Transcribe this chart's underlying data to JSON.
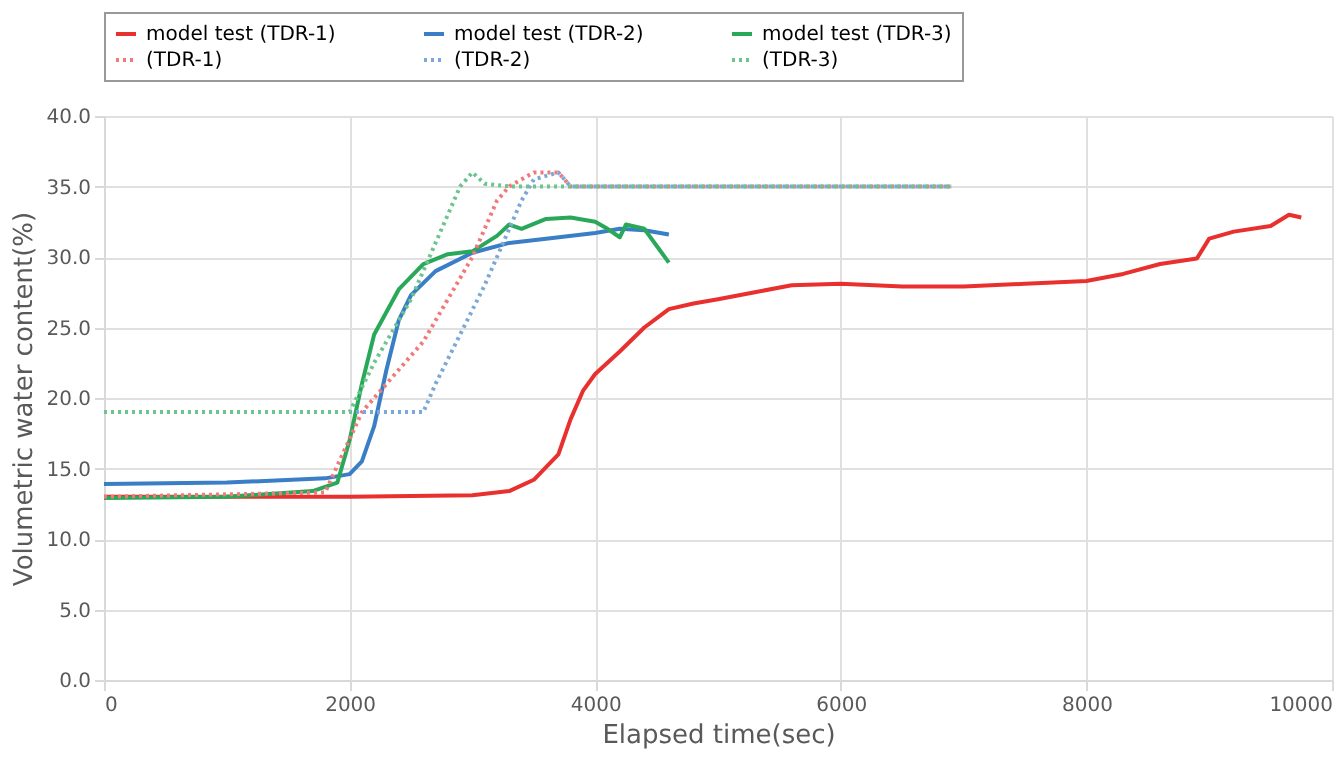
{
  "chart_data": {
    "type": "line",
    "xlabel": "Elapsed time(sec)",
    "ylabel": "Volumetric water content(%)",
    "xlim": [
      0,
      10000
    ],
    "xticks": [
      0,
      2000,
      4000,
      6000,
      8000,
      10000
    ],
    "ylim": [
      0,
      40
    ],
    "yticks": [
      {
        "value": 0,
        "label": "0.0"
      },
      {
        "value": 5,
        "label": "5.0"
      },
      {
        "value": 10,
        "label": "10.0"
      },
      {
        "value": 15,
        "label": "15.0"
      },
      {
        "value": 20,
        "label": "20.0"
      },
      {
        "value": 25,
        "label": "25.0"
      },
      {
        "value": 30,
        "label": "30.0"
      },
      {
        "value": 35,
        "label": "35.0"
      },
      {
        "value": 40,
        "label": "40.0"
      }
    ],
    "grid": true,
    "legend": "top",
    "marker": "none",
    "series": [
      {
        "name": "model test (TDR-1)",
        "color": "#e8312f",
        "line_style": "solid",
        "x": [
          0,
          1000,
          2000,
          3000,
          3300,
          3500,
          3700,
          3800,
          3900,
          4000,
          4200,
          4400,
          4600,
          4800,
          5000,
          5300,
          5600,
          6000,
          6500,
          7000,
          7500,
          8000,
          8300,
          8600,
          8900,
          9000,
          9200,
          9500,
          9650,
          9750
        ],
        "values": [
          13.0,
          13.0,
          13.0,
          13.1,
          13.4,
          14.2,
          16,
          18.5,
          20.5,
          21.7,
          23.3,
          25.0,
          26.3,
          26.7,
          27.0,
          27.5,
          28.0,
          28.1,
          27.9,
          27.9,
          28.1,
          28.3,
          28.8,
          29.5,
          29.9,
          31.3,
          31.8,
          32.2,
          33.0,
          32.8
        ]
      },
      {
        "name": "model test (TDR-2)",
        "color": "#3a7ec6",
        "line_style": "solid",
        "x": [
          0,
          1000,
          1800,
          2000,
          2100,
          2200,
          2300,
          2400,
          2500,
          2700,
          3000,
          3300,
          3600,
          4000,
          4200,
          4400,
          4600
        ],
        "values": [
          13.9,
          14.0,
          14.3,
          14.6,
          15.5,
          18,
          22,
          25.5,
          27.3,
          29,
          30.3,
          31.0,
          31.3,
          31.7,
          32.0,
          31.9,
          31.6
        ]
      },
      {
        "name": "model test (TDR-3)",
        "color": "#29a85a",
        "line_style": "solid",
        "x": [
          0,
          1000,
          1700,
          1900,
          2000,
          2100,
          2200,
          2400,
          2600,
          2800,
          3000,
          3200,
          3300,
          3400,
          3600,
          3800,
          4000,
          4100,
          4200,
          4250,
          4400,
          4500,
          4600
        ],
        "values": [
          12.9,
          13.0,
          13.4,
          14,
          17,
          21,
          24.5,
          27.7,
          29.5,
          30.2,
          30.4,
          31.5,
          32.3,
          32.0,
          32.7,
          32.8,
          32.5,
          32.0,
          31.4,
          32.3,
          32.0,
          30.8,
          29.6
        ]
      },
      {
        "name": "(TDR-1)",
        "color": "#f07a7a",
        "line_style": "dotted",
        "x": [
          0,
          1800,
          2100,
          2300,
          2600,
          2800,
          3000,
          3200,
          3300,
          3500,
          3700,
          3800,
          4000,
          6900
        ],
        "values": [
          13,
          13.3,
          19,
          21,
          24,
          27,
          30,
          34,
          35,
          36,
          36,
          35,
          35,
          35
        ]
      },
      {
        "name": "(TDR-2)",
        "color": "#7aa8d8",
        "line_style": "dotted",
        "x": [
          0,
          2600,
          2700,
          2900,
          3100,
          3300,
          3400,
          3500,
          3700,
          3800,
          6900
        ],
        "values": [
          19,
          19,
          21,
          24.5,
          28,
          32,
          34,
          35.5,
          36,
          35,
          35
        ]
      },
      {
        "name": "(TDR-3)",
        "color": "#6cc48f",
        "line_style": "dotted",
        "x": [
          0,
          2000,
          2200,
          2500,
          2700,
          2900,
          3000,
          3100,
          3300,
          6900
        ],
        "values": [
          19,
          19,
          22.5,
          27,
          31,
          35,
          36,
          35.2,
          35,
          35
        ]
      }
    ]
  }
}
